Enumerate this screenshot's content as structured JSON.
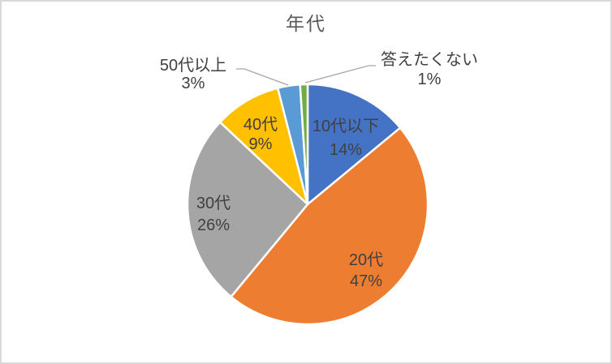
{
  "window": {
    "background_color": "#FFFFFF",
    "border_color": "#D9D9D9"
  },
  "chart_data": {
    "type": "pie",
    "title": "年代",
    "categories": [
      "10代以下",
      "20代",
      "30代",
      "40代",
      "50代以上",
      "答えたくない"
    ],
    "values": [
      14,
      47,
      26,
      9,
      3,
      1
    ],
    "percent_labels": [
      "14%",
      "47%",
      "26%",
      "9%",
      "3%",
      "1%"
    ],
    "colors": [
      "#4472C4",
      "#ED7D31",
      "#A5A5A5",
      "#FFC000",
      "#5B9BD5",
      "#70AD47"
    ],
    "label_format": "category-newline-percent",
    "label_placement": [
      "inside",
      "inside",
      "inside",
      "inside",
      "outside",
      "outside"
    ],
    "start_angle_deg": 0,
    "direction": "clockwise",
    "legend": "none",
    "title_color": "#595959",
    "label_color": "#404040",
    "leader_line_color": "#A6A6A6",
    "slice_border_color": "#FFFFFF"
  }
}
